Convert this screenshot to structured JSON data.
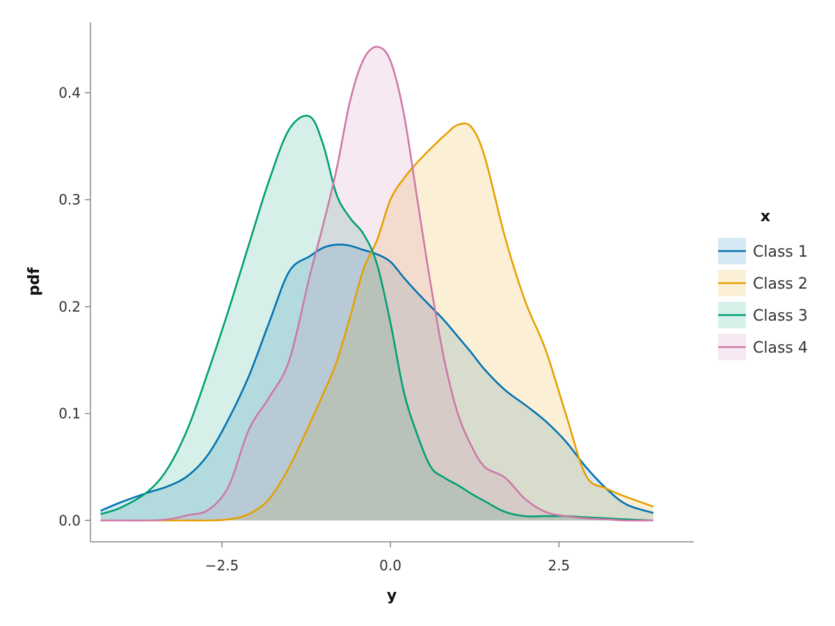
{
  "chart_data": {
    "type": "area",
    "xlabel": "y",
    "ylabel": "pdf",
    "xlim": [
      -4.45,
      4.5
    ],
    "ylim": [
      -0.02,
      0.466
    ],
    "x_ticks": [
      -2.5,
      0.0,
      2.5
    ],
    "x_tick_labels": [
      "−2.5",
      "0.0",
      "2.5"
    ],
    "y_ticks": [
      0.0,
      0.1,
      0.2,
      0.3,
      0.4
    ],
    "y_tick_labels": [
      "0.0",
      "0.1",
      "0.2",
      "0.3",
      "0.4"
    ],
    "grid": false,
    "legend": {
      "title": "x",
      "placement": "right"
    },
    "x": [
      -4.3,
      -4.0,
      -3.6,
      -3.3,
      -3.0,
      -2.7,
      -2.4,
      -2.1,
      -1.8,
      -1.5,
      -1.2,
      -1.0,
      -0.8,
      -0.6,
      -0.4,
      -0.2,
      0.0,
      0.2,
      0.4,
      0.6,
      0.8,
      1.0,
      1.2,
      1.4,
      1.7,
      2.0,
      2.3,
      2.6,
      2.9,
      3.2,
      3.5,
      3.9
    ],
    "series": [
      {
        "name": "Class 1",
        "color": "#0072B2",
        "values": [
          0.009,
          0.017,
          0.026,
          0.032,
          0.042,
          0.062,
          0.095,
          0.135,
          0.185,
          0.233,
          0.247,
          0.255,
          0.258,
          0.257,
          0.253,
          0.249,
          0.242,
          0.227,
          0.213,
          0.2,
          0.187,
          0.172,
          0.157,
          0.141,
          0.122,
          0.108,
          0.093,
          0.074,
          0.05,
          0.03,
          0.015,
          0.007
        ]
      },
      {
        "name": "Class 2",
        "color": "#E69F00",
        "values": [
          0.0,
          0.0,
          0.0,
          0.0,
          0.0,
          0.0,
          0.001,
          0.006,
          0.02,
          0.05,
          0.09,
          0.118,
          0.148,
          0.19,
          0.235,
          0.262,
          0.3,
          0.32,
          0.335,
          0.348,
          0.36,
          0.37,
          0.368,
          0.34,
          0.265,
          0.205,
          0.16,
          0.1,
          0.042,
          0.03,
          0.022,
          0.013
        ]
      },
      {
        "name": "Class 3",
        "color": "#009E73",
        "values": [
          0.006,
          0.012,
          0.027,
          0.049,
          0.087,
          0.14,
          0.197,
          0.258,
          0.318,
          0.366,
          0.378,
          0.352,
          0.305,
          0.283,
          0.268,
          0.24,
          0.185,
          0.12,
          0.08,
          0.05,
          0.04,
          0.033,
          0.025,
          0.018,
          0.008,
          0.004,
          0.004,
          0.004,
          0.003,
          0.002,
          0.001,
          0.0
        ]
      },
      {
        "name": "Class 4",
        "color": "#CC79A7",
        "values": [
          0.0,
          0.0,
          0.0,
          0.001,
          0.005,
          0.01,
          0.032,
          0.085,
          0.115,
          0.15,
          0.228,
          0.276,
          0.328,
          0.392,
          0.431,
          0.443,
          0.43,
          0.38,
          0.3,
          0.22,
          0.15,
          0.1,
          0.07,
          0.05,
          0.04,
          0.02,
          0.008,
          0.004,
          0.002,
          0.001,
          0.0,
          0.0
        ]
      }
    ]
  }
}
